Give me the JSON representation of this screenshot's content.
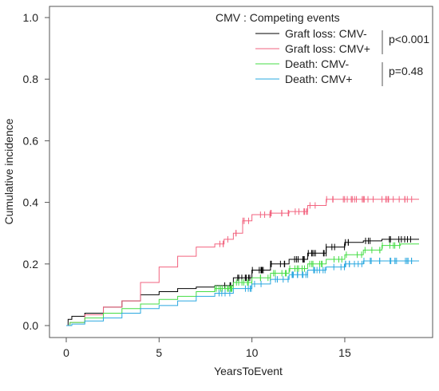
{
  "chart_data": {
    "type": "line",
    "title": "",
    "xlabel": "YearsToEvent",
    "ylabel": "Cumulative incidence",
    "xlim": [
      0,
      19
    ],
    "ylim": [
      0,
      1.0
    ],
    "x_ticks": [
      0,
      5,
      10,
      15
    ],
    "y_ticks": [
      "0.0",
      "0.2",
      "0.4",
      "0.6",
      "0.8",
      "1.0"
    ],
    "grid": false,
    "legend": {
      "title": "CMV : Competing events",
      "placement": "top-right",
      "pvalues": [
        "p<0.001",
        "p=0.48"
      ]
    },
    "series": [
      {
        "name": "Graft loss: CMV-",
        "color": "#000000",
        "points": [
          [
            0,
            0
          ],
          [
            0.1,
            0.02
          ],
          [
            0.3,
            0.03
          ],
          [
            1,
            0.04
          ],
          [
            2,
            0.06
          ],
          [
            3,
            0.08
          ],
          [
            4,
            0.1
          ],
          [
            5,
            0.11
          ],
          [
            6,
            0.12
          ],
          [
            7,
            0.125
          ],
          [
            8,
            0.13
          ],
          [
            9,
            0.155
          ],
          [
            10,
            0.18
          ],
          [
            11,
            0.2
          ],
          [
            12,
            0.215
          ],
          [
            13,
            0.235
          ],
          [
            14,
            0.255
          ],
          [
            15,
            0.27
          ],
          [
            16,
            0.275
          ],
          [
            17,
            0.28
          ],
          [
            18,
            0.28
          ],
          [
            19,
            0.28
          ]
        ],
        "censor_from": 8
      },
      {
        "name": "Graft loss: CMV+",
        "color": "#f2637f",
        "points": [
          [
            0,
            0
          ],
          [
            0.2,
            0.01
          ],
          [
            1,
            0.035
          ],
          [
            2,
            0.06
          ],
          [
            3,
            0.08
          ],
          [
            4,
            0.14
          ],
          [
            5,
            0.19
          ],
          [
            6,
            0.225
          ],
          [
            7,
            0.255
          ],
          [
            8,
            0.265
          ],
          [
            8.5,
            0.28
          ],
          [
            9,
            0.3
          ],
          [
            9.5,
            0.34
          ],
          [
            10,
            0.36
          ],
          [
            11,
            0.365
          ],
          [
            12,
            0.37
          ],
          [
            13,
            0.39
          ],
          [
            14,
            0.41
          ],
          [
            15,
            0.41
          ],
          [
            16,
            0.41
          ],
          [
            17,
            0.41
          ],
          [
            18,
            0.41
          ],
          [
            19,
            0.41
          ]
        ],
        "censor_from": 8.2
      },
      {
        "name": "Death: CMV-",
        "color": "#44dd44",
        "points": [
          [
            0,
            0
          ],
          [
            0.2,
            0.01
          ],
          [
            1,
            0.025
          ],
          [
            2,
            0.04
          ],
          [
            3,
            0.055
          ],
          [
            4,
            0.07
          ],
          [
            5,
            0.085
          ],
          [
            6,
            0.095
          ],
          [
            7,
            0.11
          ],
          [
            8,
            0.12
          ],
          [
            9,
            0.14
          ],
          [
            10,
            0.155
          ],
          [
            11,
            0.17
          ],
          [
            12,
            0.185
          ],
          [
            13,
            0.2
          ],
          [
            14,
            0.215
          ],
          [
            15,
            0.23
          ],
          [
            16,
            0.245
          ],
          [
            17,
            0.26
          ],
          [
            18,
            0.265
          ],
          [
            19,
            0.265
          ]
        ],
        "censor_from": 8
      },
      {
        "name": "Death: CMV+",
        "color": "#2aa8e0",
        "points": [
          [
            0,
            0
          ],
          [
            0.3,
            0.005
          ],
          [
            1,
            0.015
          ],
          [
            2,
            0.025
          ],
          [
            3,
            0.04
          ],
          [
            4,
            0.055
          ],
          [
            5,
            0.065
          ],
          [
            6,
            0.08
          ],
          [
            7,
            0.095
          ],
          [
            8,
            0.105
          ],
          [
            9,
            0.12
          ],
          [
            10,
            0.135
          ],
          [
            11,
            0.15
          ],
          [
            12,
            0.165
          ],
          [
            13,
            0.18
          ],
          [
            14,
            0.19
          ],
          [
            15,
            0.2
          ],
          [
            16,
            0.21
          ],
          [
            17,
            0.21
          ],
          [
            18,
            0.21
          ],
          [
            19,
            0.21
          ]
        ],
        "censor_from": 8
      }
    ]
  }
}
